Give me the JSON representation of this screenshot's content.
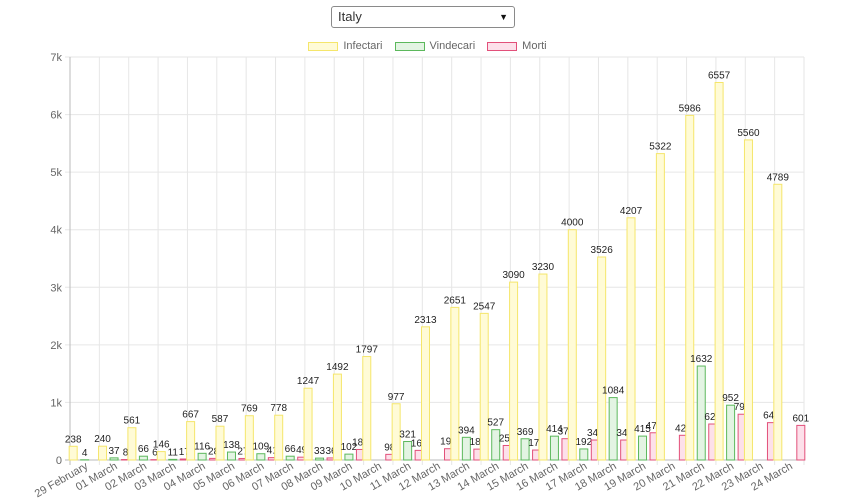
{
  "selector": {
    "value": "Italy",
    "arrow": "▼"
  },
  "legend": [
    {
      "label": "Infectari",
      "fill": "#fffbd6",
      "stroke": "#f5e66b"
    },
    {
      "label": "Vindecari",
      "fill": "#e3f4e3",
      "stroke": "#5cb85c"
    },
    {
      "label": "Morti",
      "fill": "#fde0ea",
      "stroke": "#e2507a"
    }
  ],
  "chart_data": {
    "type": "bar",
    "categories": [
      "29 February",
      "01 March",
      "02 March",
      "03 March",
      "04 March",
      "05 March",
      "06 March",
      "07 March",
      "08 March",
      "09 March",
      "10 March",
      "11 March",
      "12 March",
      "13 March",
      "14 March",
      "15 March",
      "16 March",
      "17 March",
      "18 March",
      "19 March",
      "20 March",
      "21 March",
      "22 March",
      "23 March",
      "24 March"
    ],
    "series": [
      {
        "name": "Infectari",
        "values": [
          238,
          240,
          561,
          146,
          667,
          587,
          769,
          778,
          1247,
          1492,
          1797,
          977,
          2313,
          2651,
          2547,
          3090,
          3230,
          4000,
          3526,
          4207,
          5322,
          5986,
          6557,
          5560,
          4789
        ]
      },
      {
        "name": "Vindecari",
        "values": [
          4,
          37,
          66,
          11,
          116,
          138,
          109,
          66,
          33,
          102,
          0,
          321,
          0,
          394,
          527,
          369,
          414,
          192,
          1084,
          415,
          0,
          1632,
          952,
          0,
          0
        ]
      },
      {
        "name": "Morti",
        "values": [
          0,
          8,
          6,
          17,
          28,
          27,
          41,
          49,
          36,
          183,
          98,
          167,
          196,
          189,
          252,
          173,
          370,
          347,
          347,
          473,
          429,
          625,
          795,
          649,
          601
        ]
      }
    ],
    "value_labels": [
      [
        "238",
        "240",
        "561",
        "146",
        "667",
        "587",
        "769",
        "778",
        "1247",
        "1492",
        "1797",
        "977",
        "2313",
        "2651",
        "2547",
        "3090",
        "3230",
        "4000",
        "3526",
        "4207",
        "5322",
        "5986",
        "6557",
        "5560",
        "4789"
      ],
      [
        "4",
        "37",
        "66",
        "11",
        "116",
        "138",
        "109",
        "66",
        "33",
        "102",
        "",
        "321",
        "",
        "394",
        "527",
        "369",
        "414",
        "192",
        "1084",
        "415",
        "",
        "1632",
        "952",
        "",
        ""
      ],
      [
        "",
        "8",
        "6",
        "17",
        "28",
        "27",
        "41",
        "49",
        "36",
        "183",
        "98",
        "167",
        "196",
        "189",
        "252",
        "173",
        "370",
        "347",
        "347",
        "473",
        "429",
        "625",
        "795",
        "649",
        "601"
      ]
    ],
    "y_ticks": [
      "0",
      "1k",
      "2k",
      "3k",
      "4k",
      "5k",
      "6k",
      "7k"
    ],
    "ylim": [
      0,
      7000
    ],
    "grid": true,
    "legend_position": "top-center"
  }
}
